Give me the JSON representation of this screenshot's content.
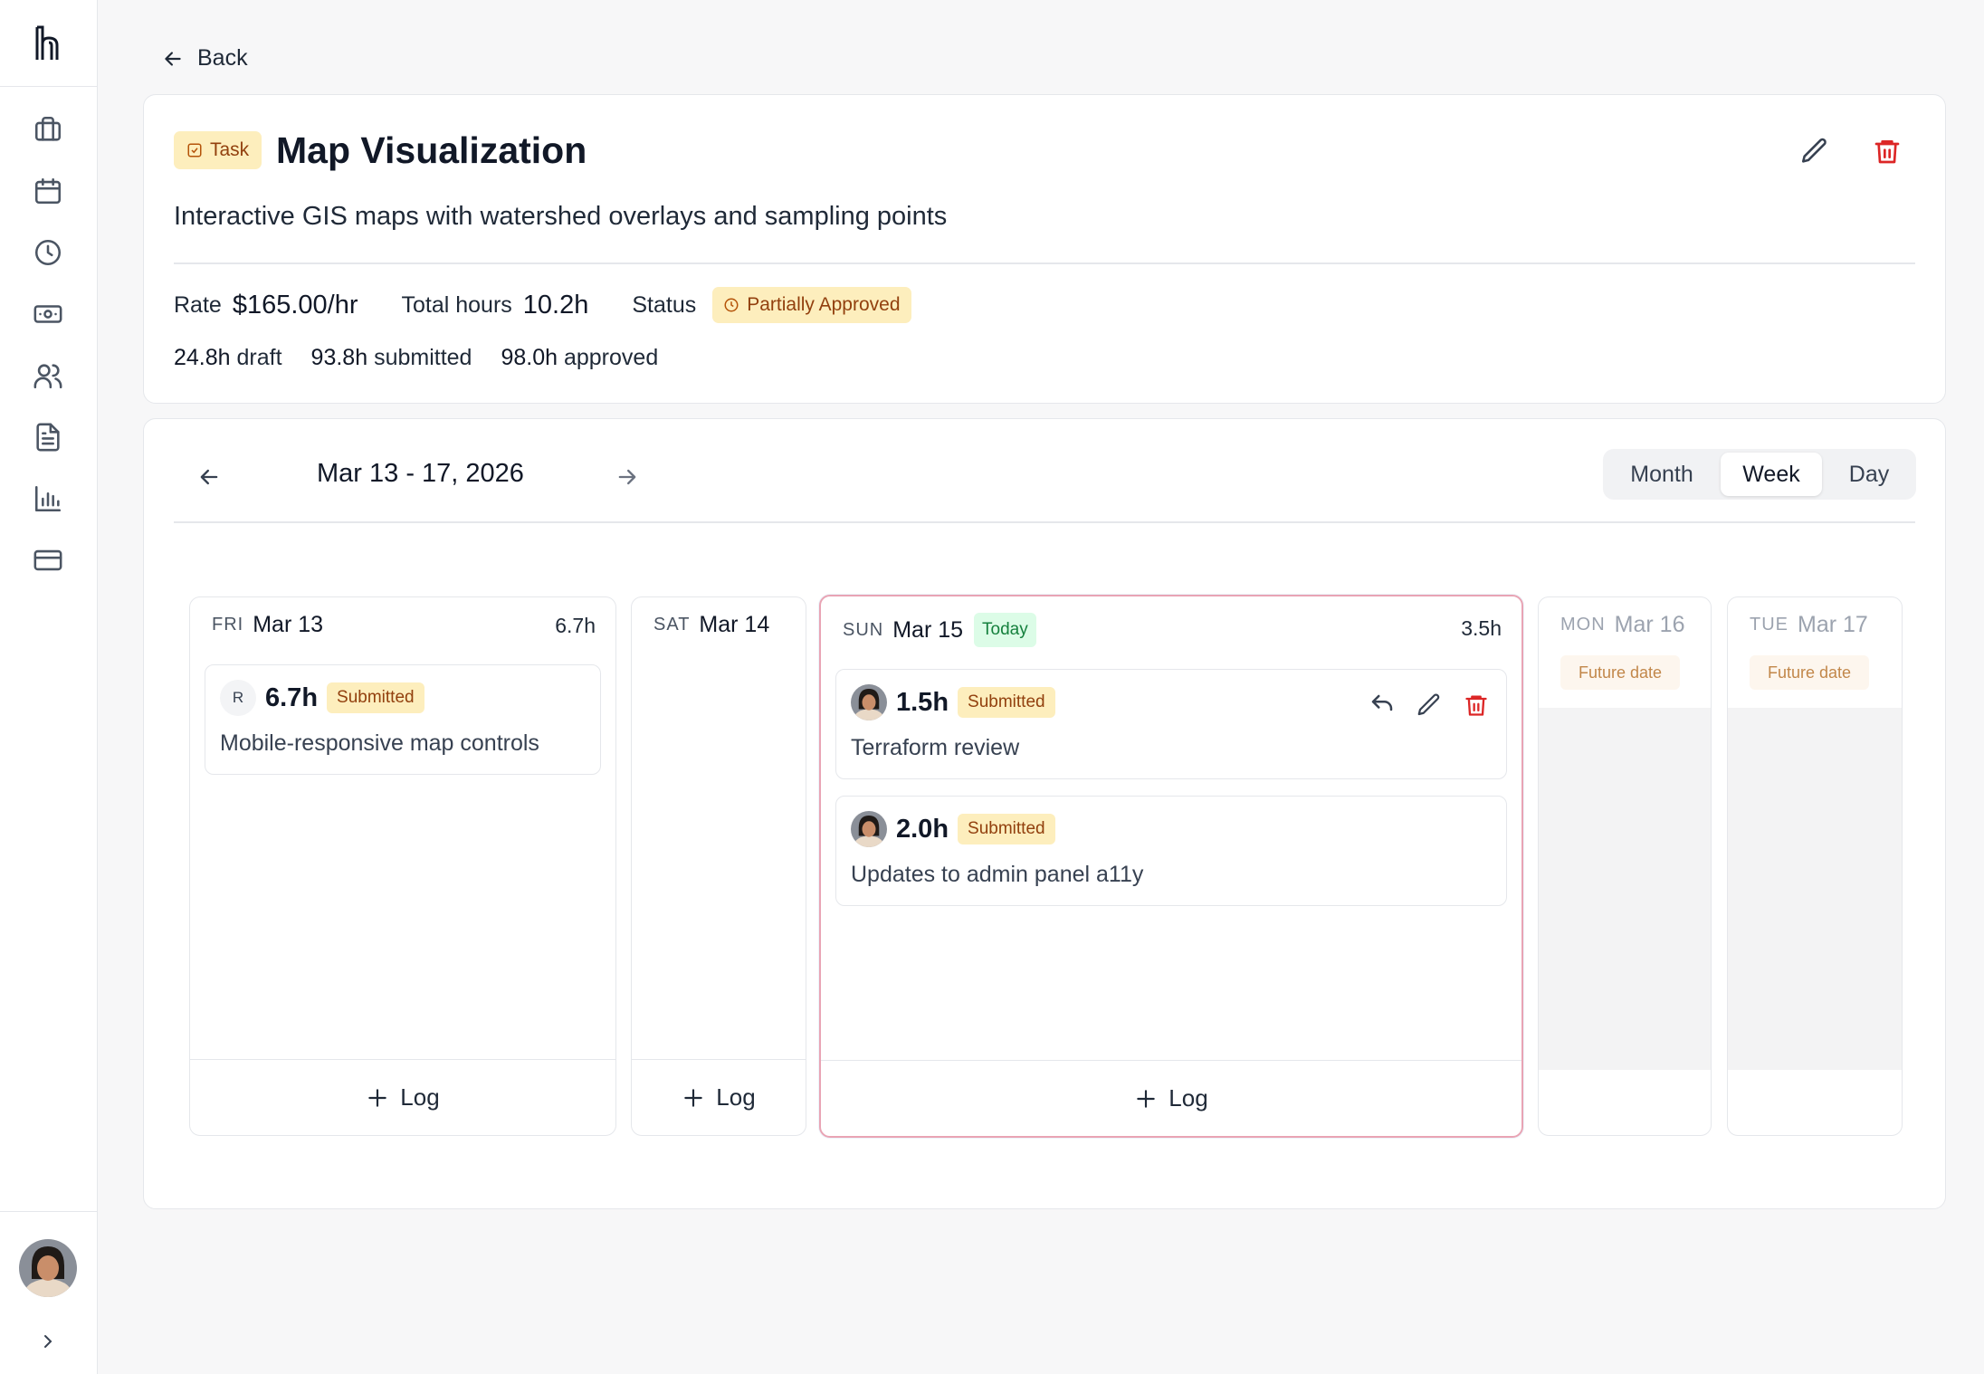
{
  "sidebar": {
    "logo_icon": "brand-logo",
    "nav_icons": [
      "briefcase-icon",
      "calendar-icon",
      "clock-icon",
      "money-icon",
      "users-icon",
      "document-icon",
      "bar-chart-icon",
      "credit-card-icon"
    ]
  },
  "back_label": "Back",
  "task": {
    "badge": "Task",
    "title": "Map Visualization",
    "description": "Interactive GIS maps with watershed overlays and sampling points",
    "rate_label": "Rate",
    "rate_value": "$165.00/hr",
    "total_hours_label": "Total hours",
    "total_hours_value": "10.2h",
    "status_label": "Status",
    "status_value": "Partially Approved",
    "draft_value": "24.8h",
    "draft_label": "draft",
    "submitted_value": "93.8h",
    "submitted_label": "submitted",
    "approved_value": "98.0h",
    "approved_label": "approved"
  },
  "calendar": {
    "date_range": "Mar 13 - 17, 2026",
    "views": [
      "Month",
      "Week",
      "Day"
    ],
    "active_view": "Week",
    "log_label": "Log",
    "future_label": "Future date",
    "today_label": "Today",
    "days": [
      {
        "dow": "FRI",
        "date": "Mar 13",
        "total": "6.7h",
        "entries": [
          {
            "initial": "R",
            "hours": "6.7h",
            "status": "Submitted",
            "description": "Mobile-responsive map controls"
          }
        ]
      },
      {
        "dow": "SAT",
        "date": "Mar 14",
        "total": "",
        "entries": []
      },
      {
        "dow": "SUN",
        "date": "Mar 15",
        "total": "3.5h",
        "entries": [
          {
            "hours": "1.5h",
            "status": "Submitted",
            "description": "Terraform review"
          },
          {
            "hours": "2.0h",
            "status": "Submitted",
            "description": "Updates to admin panel a11y"
          }
        ]
      },
      {
        "dow": "MON",
        "date": "Mar 16"
      },
      {
        "dow": "TUE",
        "date": "Mar 17"
      }
    ]
  },
  "colors": {
    "accent_badge_bg": "#fdeebd",
    "accent_badge_text": "#92400e",
    "danger": "#dc2626",
    "today_bg": "#dcfce7",
    "today_text": "#15803d"
  }
}
